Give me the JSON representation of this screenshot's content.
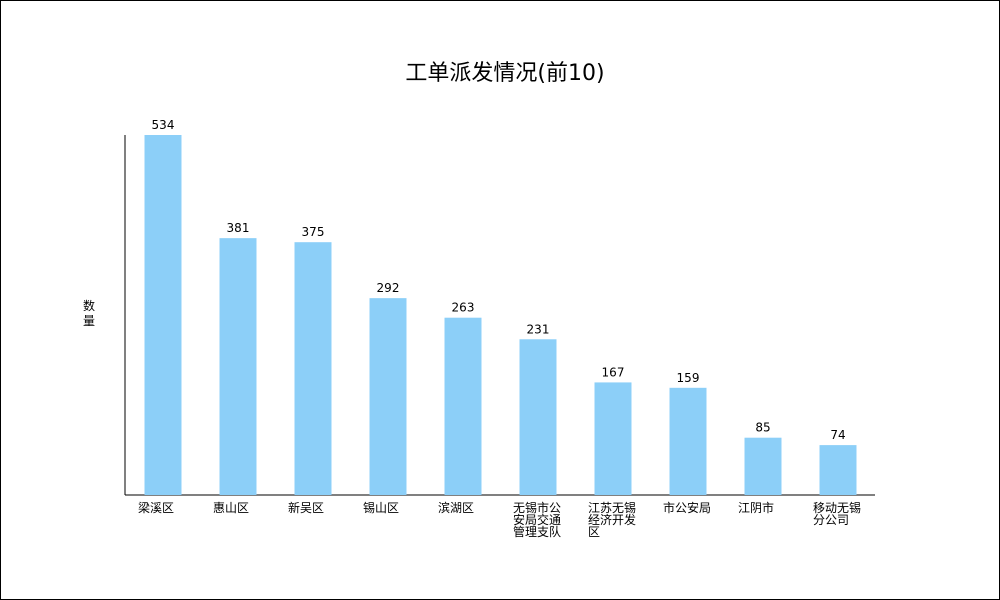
{
  "chart_data": {
    "type": "bar",
    "title": "工单派发情况(前10)",
    "y_label": "数量",
    "categories": [
      "梁溪区",
      "惠山区",
      "新吴区",
      "锡山区",
      "滨湖区",
      "无锡市公安局交通管理支队",
      "江苏无锡经济开发区",
      "市公安局",
      "江阴市",
      "移动无锡分公司"
    ],
    "values": [
      534,
      381,
      375,
      292,
      263,
      231,
      167,
      159,
      85,
      74
    ],
    "color": "#8ccff8"
  }
}
